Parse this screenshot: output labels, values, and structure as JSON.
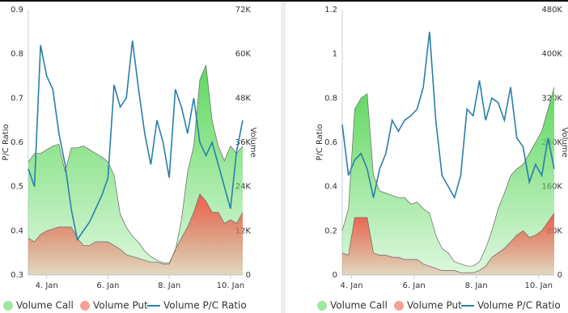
{
  "chart_data": [
    {
      "type": "area",
      "y_label": "P/C Ratio",
      "y2_label": "Volume",
      "legend": "bottom",
      "x": [
        3.4,
        3.6,
        3.8,
        4.0,
        4.2,
        4.4,
        4.6,
        4.8,
        5.0,
        5.2,
        5.4,
        5.6,
        5.8,
        6.0,
        6.2,
        6.4,
        6.6,
        6.8,
        7.0,
        7.2,
        7.4,
        7.6,
        7.8,
        8.0,
        8.2,
        8.4,
        8.6,
        8.8,
        9.0,
        9.2,
        9.4,
        9.6,
        9.8,
        10.0,
        10.2,
        10.4
      ],
      "xlim": [
        3.4,
        10.4
      ],
      "xticks": [
        {
          "value": 4,
          "label": "4. Jan"
        },
        {
          "value": 6,
          "label": "6. Jan"
        },
        {
          "value": 8,
          "label": "8. Jan"
        },
        {
          "value": 10,
          "label": "10. Jan"
        }
      ],
      "ylim": [
        0.3,
        0.9
      ],
      "yticks": [
        0.3,
        0.4,
        0.5,
        0.6,
        0.7,
        0.8,
        0.9
      ],
      "y2lim": [
        0,
        72000
      ],
      "y2ticks": [
        0,
        {
          "value": 12000,
          "label": "12K"
        },
        {
          "value": 24000,
          "label": "24K"
        },
        {
          "value": 36000,
          "label": "36K"
        },
        {
          "value": 48000,
          "label": "48K"
        },
        {
          "value": 60000,
          "label": "60K"
        },
        {
          "value": 72000,
          "label": "72K"
        }
      ],
      "series": [
        {
          "name": "Volume Call",
          "type": "area",
          "axis": "y2",
          "color": "#5fd85f",
          "values": [
            30700,
            33000,
            33000,
            34000,
            35000,
            35500,
            28000,
            34500,
            34500,
            35000,
            34000,
            33000,
            32000,
            30700,
            27000,
            16500,
            13000,
            10500,
            8800,
            6500,
            5000,
            4000,
            3300,
            3300,
            6600,
            15000,
            28000,
            35000,
            53000,
            57000,
            42000,
            35000,
            31000,
            35000,
            33000,
            35000
          ]
        },
        {
          "name": "Volume Put",
          "type": "area",
          "axis": "y2",
          "color": "#f0604f",
          "values": [
            10000,
            9000,
            11000,
            12000,
            12500,
            13000,
            13000,
            13000,
            10000,
            8000,
            8000,
            9000,
            9000,
            9000,
            8000,
            7000,
            5500,
            5000,
            4500,
            4000,
            3500,
            3500,
            3000,
            3000,
            7000,
            10000,
            13000,
            17000,
            22000,
            20000,
            17000,
            17000,
            14000,
            15000,
            14000,
            17000
          ]
        },
        {
          "name": "Volume P/C Ratio",
          "type": "line",
          "color": "#2a7fa8",
          "values": [
            0.54,
            0.5,
            0.82,
            0.75,
            0.72,
            0.62,
            0.55,
            0.45,
            0.38,
            0.4,
            0.42,
            0.45,
            0.48,
            0.52,
            0.73,
            0.68,
            0.7,
            0.83,
            0.72,
            0.62,
            0.55,
            0.65,
            0.6,
            0.52,
            0.72,
            0.68,
            0.62,
            0.7,
            0.6,
            0.57,
            0.6,
            0.55,
            0.5,
            0.45,
            0.58,
            0.65
          ]
        }
      ]
    },
    {
      "type": "area",
      "y_label": "P/C Ratio",
      "y2_label": "Volume",
      "legend": "bottom",
      "x": [
        3.7,
        3.9,
        4.1,
        4.3,
        4.5,
        4.7,
        4.9,
        5.1,
        5.3,
        5.5,
        5.7,
        5.9,
        6.1,
        6.3,
        6.5,
        6.7,
        6.9,
        7.1,
        7.3,
        7.5,
        7.7,
        7.9,
        8.1,
        8.3,
        8.5,
        8.7,
        8.9,
        9.1,
        9.3,
        9.5,
        9.7,
        9.9,
        10.1,
        10.3,
        10.5
      ],
      "xlim": [
        3.7,
        10.5
      ],
      "xticks": [
        {
          "value": 4,
          "label": "4. Jan"
        },
        {
          "value": 6,
          "label": "6. Jan"
        },
        {
          "value": 8,
          "label": "8. Jan"
        },
        {
          "value": 10,
          "label": "10. Jan"
        }
      ],
      "ylim": [
        0,
        1.2
      ],
      "yticks": [
        0,
        0.2,
        0.4,
        0.6,
        0.8,
        1,
        1.2
      ],
      "y2lim": [
        0,
        480000
      ],
      "y2ticks": [
        0,
        {
          "value": 80000,
          "label": "80K"
        },
        {
          "value": 160000,
          "label": "160K"
        },
        {
          "value": 240000,
          "label": "240K"
        },
        {
          "value": 320000,
          "label": "320K"
        },
        {
          "value": 400000,
          "label": "400K"
        },
        {
          "value": 480000,
          "label": "480K"
        }
      ],
      "series": [
        {
          "name": "Volume Call",
          "type": "area",
          "axis": "y2",
          "color": "#5fd85f",
          "values": [
            80000,
            120000,
            300000,
            320000,
            328000,
            180000,
            152000,
            148000,
            144000,
            140000,
            140000,
            128000,
            132000,
            120000,
            112000,
            72000,
            48000,
            40000,
            24000,
            20000,
            16000,
            16000,
            24000,
            48000,
            80000,
            120000,
            148000,
            180000,
            192000,
            200000,
            220000,
            240000,
            260000,
            300000,
            340000
          ]
        },
        {
          "name": "Volume Put",
          "type": "area",
          "axis": "y2",
          "color": "#f0604f",
          "values": [
            40000,
            36000,
            104000,
            104000,
            104000,
            40000,
            36000,
            36000,
            32000,
            32000,
            28000,
            28000,
            28000,
            20000,
            16000,
            12000,
            8000,
            8000,
            8000,
            4000,
            4000,
            4000,
            8000,
            16000,
            32000,
            40000,
            48000,
            60000,
            72000,
            80000,
            68000,
            72000,
            80000,
            96000,
            112000
          ]
        },
        {
          "name": "Volume P/C Ratio",
          "type": "line",
          "color": "#2a7fa8",
          "values": [
            0.68,
            0.45,
            0.52,
            0.55,
            0.48,
            0.35,
            0.48,
            0.55,
            0.7,
            0.65,
            0.7,
            0.72,
            0.75,
            0.85,
            1.1,
            0.7,
            0.45,
            0.4,
            0.35,
            0.45,
            0.75,
            0.72,
            0.88,
            0.7,
            0.8,
            0.78,
            0.7,
            0.85,
            0.62,
            0.58,
            0.42,
            0.5,
            0.45,
            0.62,
            0.48
          ]
        }
      ]
    }
  ]
}
